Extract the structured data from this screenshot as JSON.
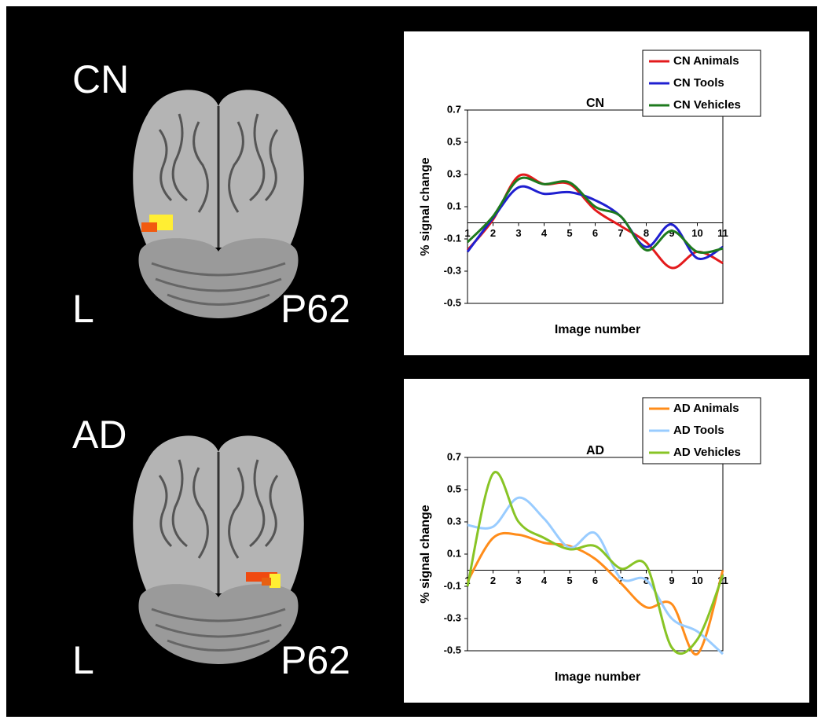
{
  "panels": [
    {
      "label": "CN",
      "side": "L",
      "slice": "P62"
    },
    {
      "label": "AD",
      "side": "L",
      "slice": "P62"
    }
  ],
  "chart_data": [
    {
      "type": "line",
      "title": "CN",
      "y_label": "% signal change",
      "x_label": "Image number",
      "x": [
        1,
        2,
        3,
        4,
        5,
        6,
        7,
        8,
        9,
        10,
        11
      ],
      "xlim": [
        1,
        11
      ],
      "xticks": [
        1,
        2,
        3,
        4,
        5,
        6,
        7,
        8,
        9,
        10,
        11
      ],
      "ylim": [
        -0.5,
        0.7
      ],
      "yticks": [
        -0.5,
        -0.3,
        -0.1,
        0.1,
        0.3,
        0.5,
        0.7
      ],
      "legend": "top-right",
      "series": [
        {
          "name": "CN Animals",
          "color": "#e31a1c",
          "values": [
            -0.17,
            0.02,
            0.29,
            0.24,
            0.24,
            0.08,
            -0.02,
            -0.12,
            -0.28,
            -0.18,
            -0.25
          ]
        },
        {
          "name": "CN Tools",
          "color": "#1f1fd0",
          "values": [
            -0.18,
            0.03,
            0.22,
            0.18,
            0.19,
            0.14,
            0.04,
            -0.15,
            -0.01,
            -0.22,
            -0.15
          ]
        },
        {
          "name": "CN Vehicles",
          "color": "#1e7a1e",
          "values": [
            -0.12,
            0.04,
            0.27,
            0.24,
            0.25,
            0.1,
            0.04,
            -0.17,
            -0.05,
            -0.18,
            -0.16
          ]
        }
      ]
    },
    {
      "type": "line",
      "title": "AD",
      "y_label": "% signal change",
      "x_label": "Image number",
      "x": [
        1,
        2,
        3,
        4,
        5,
        6,
        7,
        8,
        9,
        10,
        11
      ],
      "xlim": [
        1,
        11
      ],
      "xticks": [
        1,
        2,
        3,
        4,
        5,
        6,
        7,
        8,
        9,
        10,
        11
      ],
      "ylim": [
        -0.5,
        0.7
      ],
      "yticks": [
        -0.5,
        -0.3,
        -0.1,
        0.1,
        0.3,
        0.5,
        0.7
      ],
      "legend": "top-right",
      "series": [
        {
          "name": "AD Animals",
          "color": "#ff8c1a",
          "values": [
            -0.07,
            0.2,
            0.22,
            0.17,
            0.15,
            0.07,
            -0.08,
            -0.23,
            -0.21,
            -0.52,
            0.0
          ]
        },
        {
          "name": "AD Tools",
          "color": "#99ccff",
          "values": [
            0.28,
            0.27,
            0.45,
            0.32,
            0.14,
            0.23,
            -0.05,
            -0.06,
            -0.3,
            -0.38,
            -0.52
          ]
        },
        {
          "name": "AD Vehicles",
          "color": "#88c425",
          "values": [
            -0.1,
            0.6,
            0.3,
            0.2,
            0.13,
            0.15,
            0.01,
            0.03,
            -0.48,
            -0.43,
            -0.03
          ]
        }
      ]
    }
  ]
}
